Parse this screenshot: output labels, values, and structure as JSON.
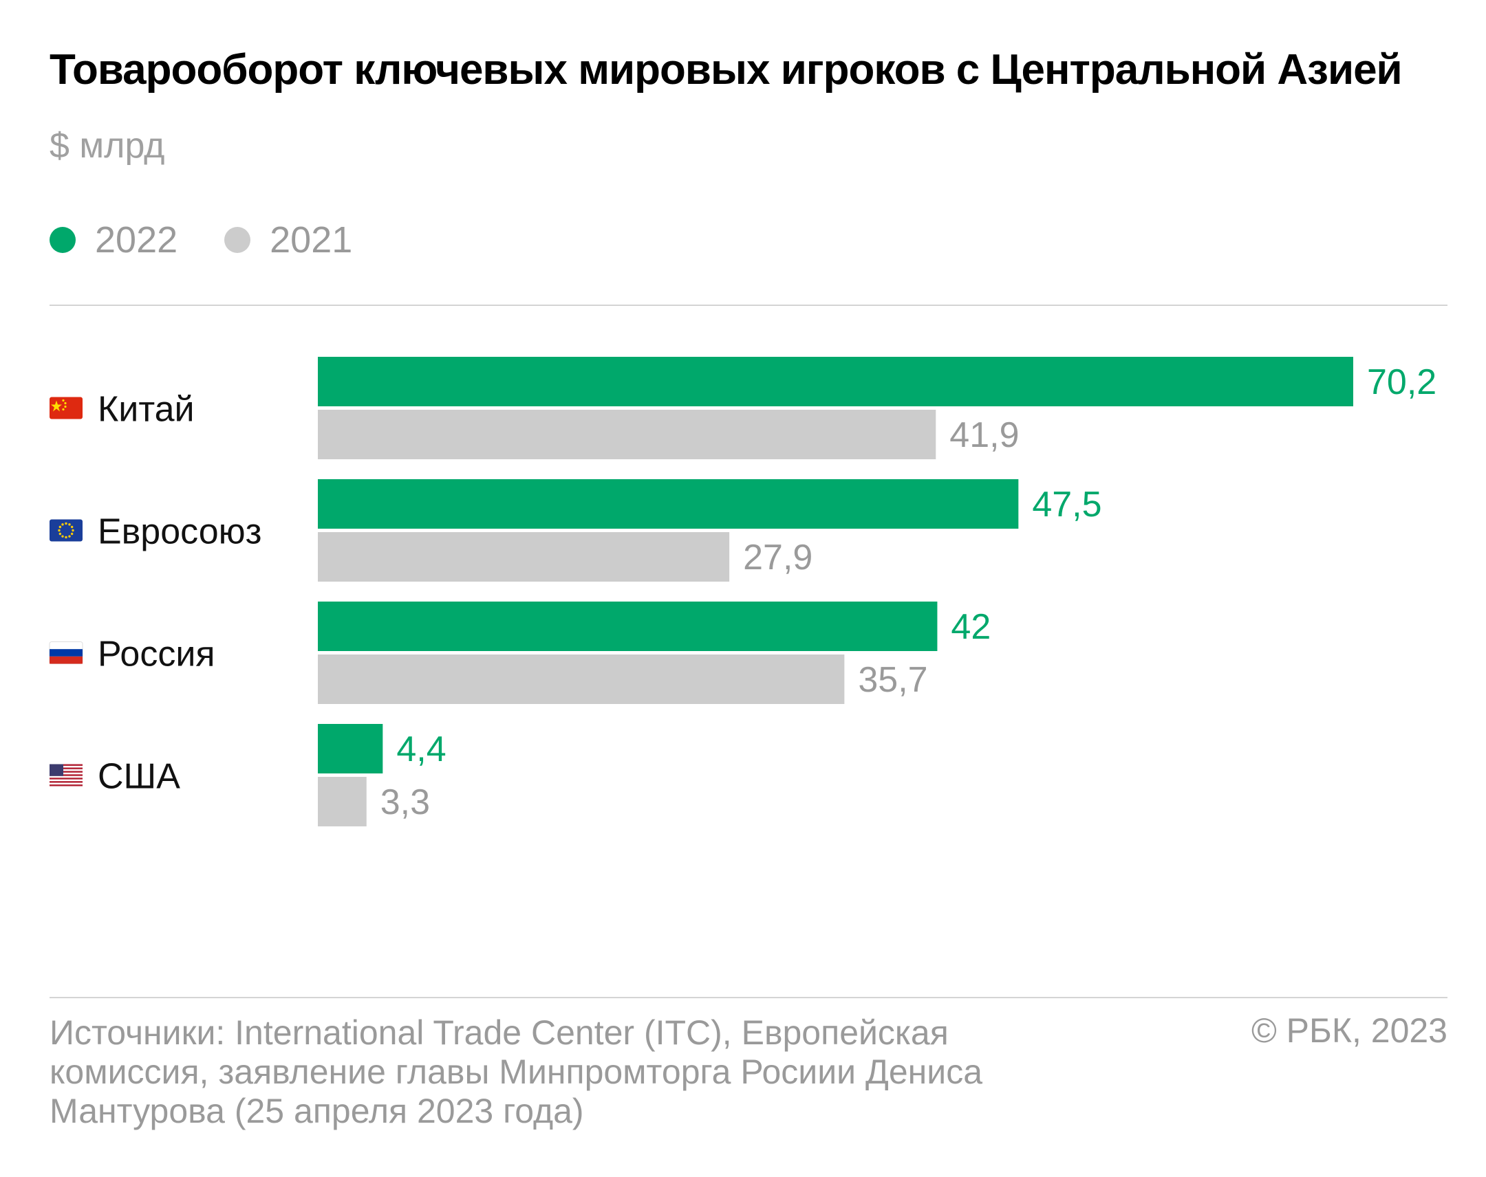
{
  "title": "Товарооборот ключевых мировых игроков с Центральной Азией",
  "subtitle": "$ млрд",
  "colors": {
    "series_2022": "#00a86b",
    "series_2021": "#cccccc",
    "label_2021": "#9a9a9a"
  },
  "legend": [
    {
      "label": "2022",
      "color": "#00a86b"
    },
    {
      "label": "2021",
      "color": "#cccccc"
    }
  ],
  "chart_data": {
    "type": "bar",
    "orientation": "horizontal",
    "categories": [
      "Китай",
      "Евросоюз",
      "Россия",
      "США"
    ],
    "category_icons": [
      "flag-china-icon",
      "flag-eu-icon",
      "flag-russia-icon",
      "flag-usa-icon"
    ],
    "series": [
      {
        "name": "2022",
        "values": [
          70.2,
          47.5,
          42,
          4.4
        ],
        "labels": [
          "70,2",
          "47,5",
          "42",
          "4,4"
        ]
      },
      {
        "name": "2021",
        "values": [
          41.9,
          27.9,
          35.7,
          3.3
        ],
        "labels": [
          "41,9",
          "27,9",
          "35,7",
          "3,3"
        ]
      }
    ],
    "title": "Товарооборот ключевых мировых игроков с Центральной Азией",
    "unit": "$ млрд",
    "xlim": [
      0,
      70.2
    ],
    "grid": false,
    "legend_position": "top-left"
  },
  "footer": {
    "sources": "Источники: International Trade Center (ITC), Европейская комиссия, заявление главы Минпромторга Росиии Дениса Мантурова (25 апреля 2023 года)",
    "copyright": "© РБК, 2023"
  }
}
